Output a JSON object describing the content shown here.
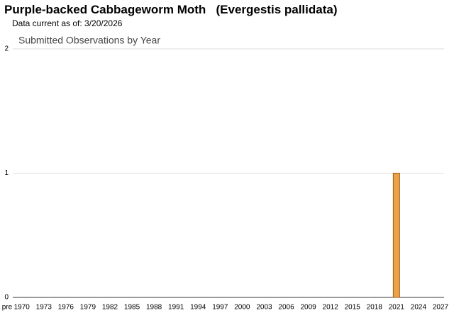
{
  "chart_data": {
    "type": "bar",
    "title": "Purple-backed Cabbageworm Moth   (Evergestis pallidata)",
    "subtitle": "Data current as of: 3/20/2026",
    "chart_title": "Submitted Observations by Year",
    "categories": [
      "pre",
      null,
      "1970",
      null,
      null,
      "1973",
      null,
      null,
      "1976",
      null,
      null,
      "1979",
      null,
      null,
      "1982",
      null,
      null,
      "1985",
      null,
      null,
      "1988",
      null,
      null,
      "1991",
      null,
      null,
      "1994",
      null,
      null,
      "1997",
      null,
      null,
      "2000",
      null,
      null,
      "2003",
      null,
      null,
      "2006",
      null,
      null,
      "2009",
      null,
      null,
      "2012",
      null,
      null,
      "2015",
      null,
      null,
      "2018",
      null,
      null,
      "2021",
      null,
      null,
      "2024",
      null,
      null,
      "2027"
    ],
    "values": [
      0,
      0,
      0,
      0,
      0,
      0,
      0,
      0,
      0,
      0,
      0,
      0,
      0,
      0,
      0,
      0,
      0,
      0,
      0,
      0,
      0,
      0,
      0,
      0,
      0,
      0,
      0,
      0,
      0,
      0,
      0,
      0,
      0,
      0,
      0,
      0,
      0,
      0,
      0,
      0,
      0,
      0,
      0,
      0,
      0,
      0,
      0,
      0,
      0,
      0,
      0,
      0,
      0,
      1,
      0,
      0,
      0,
      0,
      0,
      0
    ],
    "color": "#e9a24a",
    "edge_color": "#a85a12",
    "ylim": [
      0,
      2
    ],
    "yticks": [
      0,
      1,
      2
    ],
    "grid": true
  }
}
